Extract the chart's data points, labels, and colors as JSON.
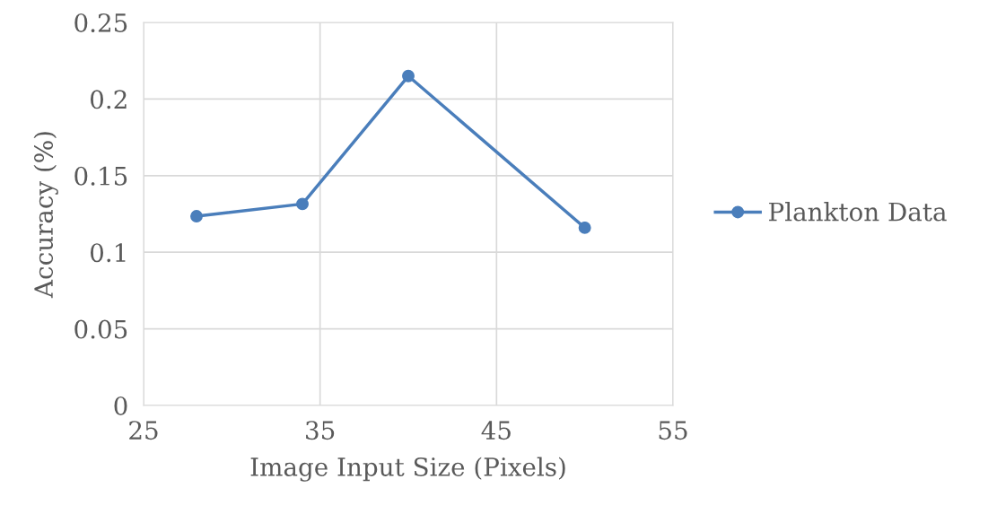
{
  "chart_data": {
    "type": "line",
    "xlabel": "Image Input Size (Pixels)",
    "ylabel": "Accuracy (%)",
    "x": [
      28,
      34,
      40,
      50
    ],
    "series": [
      {
        "name": "Plankton Data",
        "color": "#4a7ebb",
        "values": [
          0.1235,
          0.1315,
          0.215,
          0.116
        ]
      }
    ],
    "xlim": [
      25,
      55
    ],
    "xticks": [
      25,
      35,
      45,
      55
    ],
    "ylim": [
      0,
      0.25
    ],
    "yticks": [
      0,
      0.05,
      0.1,
      0.15,
      0.2,
      0.25
    ],
    "grid": true,
    "legend": "right",
    "marker": "circle",
    "line_style": "solid"
  }
}
